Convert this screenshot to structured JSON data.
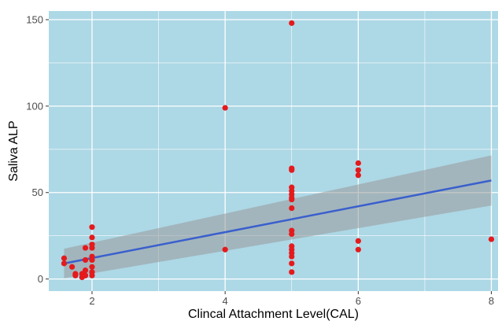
{
  "chart_data": {
    "type": "scatter",
    "xlabel": "Clincal Attachment Level(CAL)",
    "ylabel": "Saliva ALP",
    "xlim": [
      1.35,
      8.1
    ],
    "ylim": [
      -7,
      155
    ],
    "x_ticks": [
      2,
      4,
      6,
      8
    ],
    "y_ticks": [
      0,
      50,
      100,
      150
    ],
    "x_minor": [
      3,
      5,
      7
    ],
    "y_minor": [
      25,
      75,
      125
    ],
    "grid": true,
    "legend": "none",
    "colors": {
      "panel": "#add8e6",
      "grid": "#ffffff",
      "points": "#e41a1c",
      "fit_line": "#3a5fcd",
      "confidence_band": "#999999"
    },
    "points": [
      {
        "x": 1.58,
        "y": 12
      },
      {
        "x": 1.58,
        "y": 9
      },
      {
        "x": 1.7,
        "y": 7
      },
      {
        "x": 1.75,
        "y": 3
      },
      {
        "x": 1.75,
        "y": 2
      },
      {
        "x": 1.85,
        "y": 1
      },
      {
        "x": 1.85,
        "y": 3
      },
      {
        "x": 1.9,
        "y": 18
      },
      {
        "x": 1.9,
        "y": 11
      },
      {
        "x": 1.9,
        "y": 5
      },
      {
        "x": 1.9,
        "y": 2
      },
      {
        "x": 2,
        "y": 30
      },
      {
        "x": 2,
        "y": 24
      },
      {
        "x": 2,
        "y": 20
      },
      {
        "x": 2,
        "y": 18
      },
      {
        "x": 2,
        "y": 13
      },
      {
        "x": 2,
        "y": 11
      },
      {
        "x": 2,
        "y": 7
      },
      {
        "x": 2,
        "y": 4
      },
      {
        "x": 2,
        "y": 2
      },
      {
        "x": 4,
        "y": 99
      },
      {
        "x": 4,
        "y": 17
      },
      {
        "x": 5,
        "y": 148
      },
      {
        "x": 5,
        "y": 64
      },
      {
        "x": 5,
        "y": 63
      },
      {
        "x": 5,
        "y": 53
      },
      {
        "x": 5,
        "y": 51
      },
      {
        "x": 5,
        "y": 49
      },
      {
        "x": 5,
        "y": 47
      },
      {
        "x": 5,
        "y": 46
      },
      {
        "x": 5,
        "y": 41
      },
      {
        "x": 5,
        "y": 28
      },
      {
        "x": 5,
        "y": 26
      },
      {
        "x": 5,
        "y": 19
      },
      {
        "x": 5,
        "y": 17
      },
      {
        "x": 5,
        "y": 15
      },
      {
        "x": 5,
        "y": 13
      },
      {
        "x": 5,
        "y": 9
      },
      {
        "x": 5,
        "y": 4
      },
      {
        "x": 6,
        "y": 67
      },
      {
        "x": 6,
        "y": 63
      },
      {
        "x": 6,
        "y": 60
      },
      {
        "x": 6,
        "y": 22
      },
      {
        "x": 6,
        "y": 17
      },
      {
        "x": 8,
        "y": 23
      }
    ],
    "fit": {
      "x": [
        1.58,
        8
      ],
      "y": [
        9,
        57
      ],
      "band_lower": [
        0.5,
        42.5
      ],
      "band_upper": [
        17.5,
        71.5
      ]
    }
  }
}
